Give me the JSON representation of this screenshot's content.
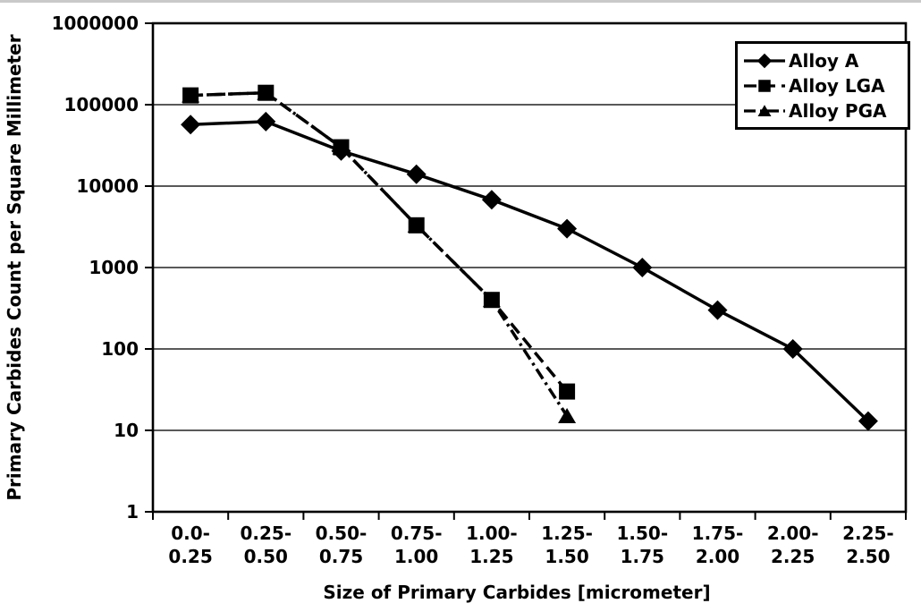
{
  "page": {
    "background_color": "#ffffff",
    "top_border_color": "#c9c9c9",
    "ink_color": "#000000"
  },
  "chart_data": {
    "type": "line",
    "title": "",
    "xlabel": "Size of Primary Carbides [micrometer]",
    "ylabel": "Primary Carbides Count per Square Millimeter",
    "x_scale": "categorical",
    "y_scale": "log",
    "ylim": [
      1,
      1000000
    ],
    "y_ticks": [
      1000000,
      100000,
      10000,
      1000,
      100,
      10,
      1
    ],
    "y_tick_labels": [
      "1000000",
      "100000",
      "10000",
      "1000",
      "100",
      "10",
      "1"
    ],
    "categories": [
      "0.0-0.25",
      "0.25-0.50",
      "0.50-0.75",
      "0.75-1.00",
      "1.00-1.25",
      "1.25-1.50",
      "1.50-1.75",
      "1.75-2.00",
      "2.00-2.25",
      "2.25-2.50"
    ],
    "category_tick_labels": [
      [
        "0.0-",
        "0.25"
      ],
      [
        "0.25-",
        "0.50"
      ],
      [
        "0.50-",
        "0.75"
      ],
      [
        "0.75-",
        "1.00"
      ],
      [
        "1.00-",
        "1.25"
      ],
      [
        "1.25-",
        "1.50"
      ],
      [
        "1.50-",
        "1.75"
      ],
      [
        "1.75-",
        "2.00"
      ],
      [
        "2.00-",
        "2.25"
      ],
      [
        "2.25-",
        "2.50"
      ]
    ],
    "grid": "horizontal",
    "legend_position": "top-right",
    "series": [
      {
        "name": "Alloy A",
        "marker": "diamond",
        "line_style": "solid",
        "values": [
          57000,
          62000,
          27000,
          14000,
          6800,
          3000,
          1000,
          300,
          100,
          13
        ]
      },
      {
        "name": "Alloy LGA",
        "marker": "square",
        "line_style": "dashed",
        "values": [
          130000,
          140000,
          30000,
          3300,
          400,
          30,
          null,
          null,
          null,
          null
        ]
      },
      {
        "name": "Alloy PGA",
        "marker": "triangle",
        "line_style": "dash-dot",
        "values": [
          130000,
          140000,
          30000,
          3300,
          400,
          15,
          null,
          null,
          null,
          null
        ]
      }
    ]
  }
}
